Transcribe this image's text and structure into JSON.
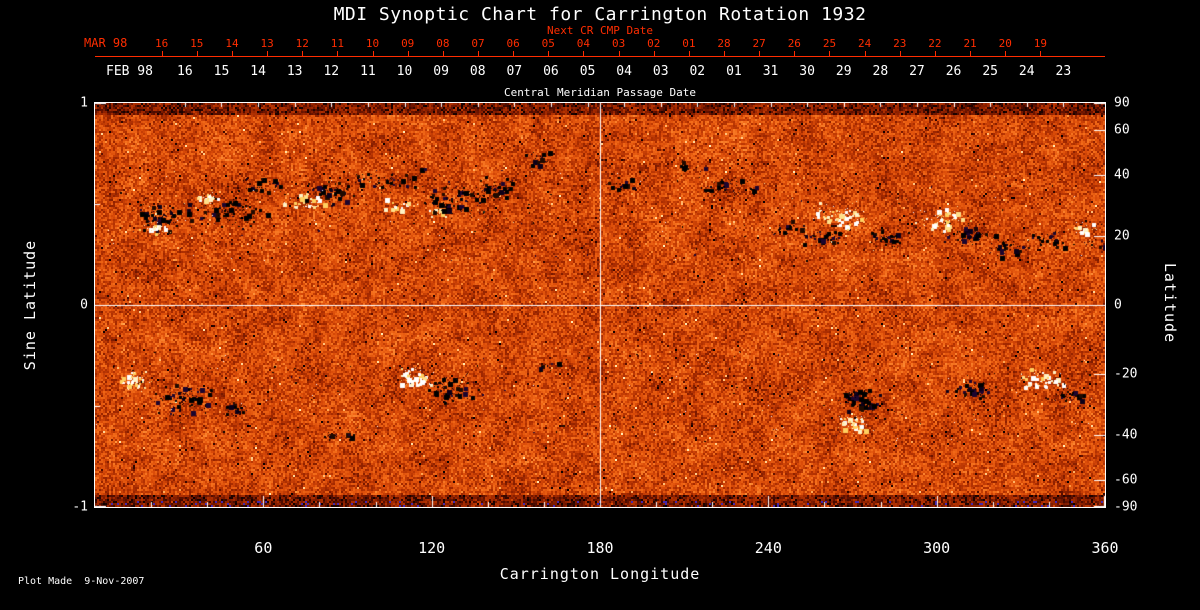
{
  "title": "MDI Synoptic Chart for Carrington Rotation 1932",
  "footer": "Plot Made  9-Nov-2007",
  "colors": {
    "background": "#000000",
    "axis_red": "#ff2d00",
    "axis_white": "#ffffff"
  },
  "top_axis_red": {
    "label": "Next CR CMP Date",
    "month": "MAR 98",
    "x0_frac": 0.066,
    "dx_frac": 0.0348,
    "days": [
      "16",
      "15",
      "14",
      "13",
      "12",
      "11",
      "10",
      "09",
      "08",
      "07",
      "06",
      "05",
      "04",
      "03",
      "02",
      "01",
      "28",
      "27",
      "26",
      "25",
      "24",
      "23",
      "22",
      "21",
      "20",
      "19"
    ]
  },
  "top_axis_white": {
    "label": "Central Meridian Passage Date",
    "month": "FEB 98",
    "x0_frac": 0.089,
    "dx_frac": 0.03624,
    "days": [
      "16",
      "15",
      "14",
      "13",
      "12",
      "11",
      "10",
      "09",
      "08",
      "07",
      "06",
      "05",
      "04",
      "03",
      "02",
      "01",
      "31",
      "30",
      "29",
      "28",
      "27",
      "26",
      "25",
      "24",
      "23"
    ]
  },
  "chart_data": {
    "type": "heatmap",
    "title": "MDI Synoptic Chart for Carrington Rotation 1932",
    "xlabel": "Carrington Longitude",
    "ylabel_left": "Sine Latitude",
    "ylabel_right": "Latitude",
    "xlim": [
      0,
      360
    ],
    "ylim_sine": [
      -1,
      1
    ],
    "x_major_ticks": [
      60,
      120,
      180,
      240,
      300,
      360
    ],
    "x_minor_step": 20,
    "left_ticks": [
      1,
      0,
      -1
    ],
    "left_minor_ticks": [
      0.5,
      -0.5
    ],
    "right_ticks_deg": [
      90,
      60,
      40,
      20,
      0,
      -20,
      -40,
      -60,
      -90
    ],
    "crosshair": {
      "lon": 180,
      "sine_lat": 0
    },
    "colormap": [
      {
        "v": 0.0,
        "c": "#0d0000"
      },
      {
        "v": 0.14,
        "c": "#5a0e00"
      },
      {
        "v": 0.32,
        "c": "#a62a00"
      },
      {
        "v": 0.52,
        "c": "#d94a08"
      },
      {
        "v": 0.7,
        "c": "#f26a18"
      },
      {
        "v": 0.85,
        "c": "#ff9840"
      },
      {
        "v": 1.0,
        "c": "#ffe8b0"
      }
    ],
    "noise": {
      "seed": 1932,
      "base": 0.5,
      "coarse": 0.22,
      "fine": 0.42,
      "dark_fleck_p": 0.025,
      "bright_fleck_p": 0.012,
      "polar_band_slat": 0.94,
      "polar_blue_p": 0.06,
      "polar_blue_color": "#4628aa"
    },
    "speckle": {
      "neg": 260,
      "pos": 110,
      "band_min": 0.22,
      "band_max": 0.68
    },
    "active_regions": [
      {
        "lon": 24,
        "slat": 0.44,
        "w": 14,
        "h": 0.1,
        "n": 70,
        "pol": "neg"
      },
      {
        "lon": 21,
        "slat": 0.38,
        "w": 8,
        "h": 0.05,
        "n": 20,
        "pol": "pos"
      },
      {
        "lon": 40,
        "slat": 0.54,
        "w": 8,
        "h": 0.05,
        "n": 22,
        "pol": "pos"
      },
      {
        "lon": 47,
        "slat": 0.47,
        "w": 16,
        "h": 0.12,
        "n": 80,
        "pol": "neg"
      },
      {
        "lon": 60,
        "slat": 0.6,
        "w": 10,
        "h": 0.06,
        "n": 30,
        "pol": "neg"
      },
      {
        "lon": 75,
        "slat": 0.52,
        "w": 10,
        "h": 0.07,
        "n": 45,
        "pol": "pos"
      },
      {
        "lon": 83,
        "slat": 0.56,
        "w": 12,
        "h": 0.08,
        "n": 55,
        "pol": "neg"
      },
      {
        "lon": 103,
        "slat": 0.62,
        "w": 18,
        "h": 0.08,
        "n": 60,
        "pol": "neg"
      },
      {
        "lon": 108,
        "slat": 0.5,
        "w": 8,
        "h": 0.05,
        "n": 22,
        "pol": "pos"
      },
      {
        "lon": 122,
        "slat": 0.47,
        "w": 6,
        "h": 0.05,
        "n": 18,
        "pol": "pos"
      },
      {
        "lon": 129,
        "slat": 0.53,
        "w": 15,
        "h": 0.12,
        "n": 95,
        "pol": "neg"
      },
      {
        "lon": 143,
        "slat": 0.58,
        "w": 10,
        "h": 0.08,
        "n": 50,
        "pol": "neg"
      },
      {
        "lon": 158,
        "slat": 0.73,
        "w": 6,
        "h": 0.05,
        "n": 18,
        "pol": "neg"
      },
      {
        "lon": 187,
        "slat": 0.6,
        "w": 8,
        "h": 0.05,
        "n": 15,
        "pol": "neg"
      },
      {
        "lon": 212,
        "slat": 0.68,
        "w": 8,
        "h": 0.05,
        "n": 15,
        "pol": "neg"
      },
      {
        "lon": 226,
        "slat": 0.6,
        "w": 14,
        "h": 0.08,
        "n": 40,
        "pol": "neg"
      },
      {
        "lon": 247,
        "slat": 0.38,
        "w": 8,
        "h": 0.05,
        "n": 20,
        "pol": "neg"
      },
      {
        "lon": 259,
        "slat": 0.34,
        "w": 10,
        "h": 0.07,
        "n": 50,
        "pol": "neg"
      },
      {
        "lon": 266,
        "slat": 0.45,
        "w": 12,
        "h": 0.09,
        "n": 75,
        "pol": "pos"
      },
      {
        "lon": 281,
        "slat": 0.33,
        "w": 9,
        "h": 0.07,
        "n": 45,
        "pol": "neg"
      },
      {
        "lon": 302,
        "slat": 0.43,
        "w": 12,
        "h": 0.08,
        "n": 65,
        "pol": "pos"
      },
      {
        "lon": 313,
        "slat": 0.35,
        "w": 14,
        "h": 0.08,
        "n": 60,
        "pol": "neg"
      },
      {
        "lon": 325,
        "slat": 0.28,
        "w": 10,
        "h": 0.06,
        "n": 35,
        "pol": "neg"
      },
      {
        "lon": 340,
        "slat": 0.33,
        "w": 10,
        "h": 0.06,
        "n": 30,
        "pol": "neg"
      },
      {
        "lon": 352,
        "slat": 0.38,
        "w": 8,
        "h": 0.05,
        "n": 22,
        "pol": "pos"
      },
      {
        "lon": 356,
        "slat": 0.3,
        "w": 6,
        "h": 0.04,
        "n": 12,
        "pol": "neg"
      },
      {
        "lon": 14,
        "slat": -0.37,
        "w": 8,
        "h": 0.07,
        "n": 55,
        "pol": "pos"
      },
      {
        "lon": 30,
        "slat": -0.46,
        "w": 16,
        "h": 0.1,
        "n": 85,
        "pol": "neg"
      },
      {
        "lon": 50,
        "slat": -0.51,
        "w": 6,
        "h": 0.05,
        "n": 25,
        "pol": "neg"
      },
      {
        "lon": 88,
        "slat": -0.64,
        "w": 8,
        "h": 0.04,
        "n": 18,
        "pol": "neg"
      },
      {
        "lon": 113,
        "slat": -0.36,
        "w": 9,
        "h": 0.07,
        "n": 50,
        "pol": "pos"
      },
      {
        "lon": 126,
        "slat": -0.41,
        "w": 12,
        "h": 0.09,
        "n": 65,
        "pol": "neg"
      },
      {
        "lon": 160,
        "slat": -0.3,
        "w": 6,
        "h": 0.04,
        "n": 12,
        "pol": "neg"
      },
      {
        "lon": 270,
        "slat": -0.58,
        "w": 9,
        "h": 0.07,
        "n": 50,
        "pol": "pos"
      },
      {
        "lon": 272,
        "slat": -0.47,
        "w": 12,
        "h": 0.08,
        "n": 60,
        "pol": "neg"
      },
      {
        "lon": 312,
        "slat": -0.41,
        "w": 12,
        "h": 0.07,
        "n": 50,
        "pol": "neg"
      },
      {
        "lon": 337,
        "slat": -0.36,
        "w": 12,
        "h": 0.07,
        "n": 50,
        "pol": "pos"
      },
      {
        "lon": 346,
        "slat": -0.45,
        "w": 10,
        "h": 0.06,
        "n": 30,
        "pol": "neg"
      }
    ]
  }
}
